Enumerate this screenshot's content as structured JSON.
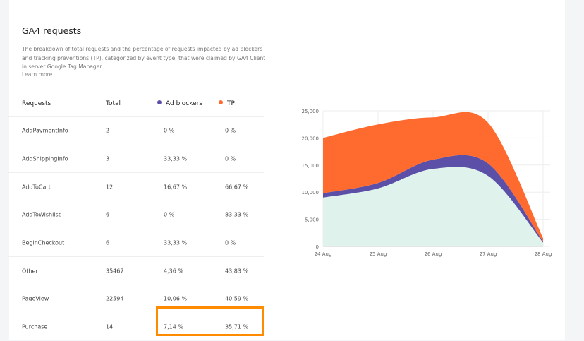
{
  "header": {
    "title": "GA4 requests",
    "description": "The breakdown of total requests and the percentage of requests impacted by ad blockers and tracking preventions (TP), categorized by event type, that were claimed by GA4 Client in server Google Tag Manager.",
    "learn_more": "Learn more"
  },
  "table": {
    "columns": [
      "Requests",
      "Total",
      "Ad blockers",
      "TP"
    ],
    "legend_colors": {
      "ad_blockers": "#5b4fa8",
      "tp": "#ff6b2e"
    },
    "rows": [
      [
        "AddPaymentInfo",
        "2",
        "0 %",
        "0 %"
      ],
      [
        "AddShippingInfo",
        "3",
        "33,33 %",
        "0 %"
      ],
      [
        "AddToCart",
        "12",
        "16,67 %",
        "66,67 %"
      ],
      [
        "AddToWishlist",
        "6",
        "0 %",
        "83,33 %"
      ],
      [
        "BeginCheckout",
        "6",
        "33,33 %",
        "0 %"
      ],
      [
        "Other",
        "35467",
        "4,36 %",
        "43,83 %"
      ],
      [
        "PageView",
        "22594",
        "10,06 %",
        "40,59 %"
      ],
      [
        "Purchase",
        "14",
        "7,14 %",
        "35,71 %"
      ]
    ],
    "highlighted_row": "Purchase"
  },
  "chart_data": {
    "type": "area",
    "stacked": true,
    "x": [
      "24 Aug",
      "25 Aug",
      "26 Aug",
      "27 Aug",
      "28 Aug"
    ],
    "ylim": [
      0,
      25000
    ],
    "yticks": [
      "0",
      "5,000",
      "10,000",
      "15,000",
      "20,000",
      "25,000"
    ],
    "grid": true,
    "series": [
      {
        "values": [
          9000,
          10700,
          14300,
          13000,
          700
        ],
        "color": "#dff2ec"
      },
      {
        "values": [
          800,
          1000,
          1700,
          2300,
          200
        ],
        "color": "#5b4fa8"
      },
      {
        "values": [
          10200,
          10800,
          7800,
          7500,
          600
        ],
        "color": "#ff6b2e"
      }
    ]
  }
}
